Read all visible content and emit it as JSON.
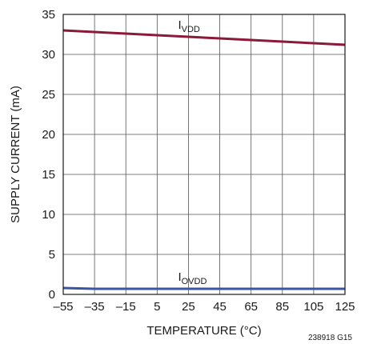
{
  "chart_data": {
    "type": "line",
    "xlabel": "TEMPERATURE (°C)",
    "ylabel": "SUPPLY CURRENT (mA)",
    "xlim": [
      -55,
      125
    ],
    "ylim": [
      0,
      35
    ],
    "xticks": [
      -55,
      -35,
      -15,
      5,
      25,
      45,
      65,
      85,
      105,
      125
    ],
    "yticks": [
      0,
      5,
      10,
      15,
      20,
      25,
      30,
      35
    ],
    "grid": true,
    "series": [
      {
        "name": "IVDD",
        "label_main": "I",
        "label_sub": "VDD",
        "color": "#8b1a3a",
        "x": [
          -55,
          -35,
          -15,
          5,
          25,
          45,
          65,
          85,
          105,
          125
        ],
        "y": [
          33.0,
          32.8,
          32.6,
          32.4,
          32.2,
          32.0,
          31.8,
          31.6,
          31.4,
          31.2
        ]
      },
      {
        "name": "IOVDD",
        "label_main": "I",
        "label_sub": "OVDD",
        "color": "#3a55a4",
        "x": [
          -55,
          -35,
          -15,
          5,
          25,
          45,
          65,
          85,
          105,
          125
        ],
        "y": [
          0.8,
          0.7,
          0.7,
          0.7,
          0.7,
          0.7,
          0.7,
          0.7,
          0.7,
          0.7
        ]
      }
    ],
    "figure_code": "238918 G15"
  }
}
